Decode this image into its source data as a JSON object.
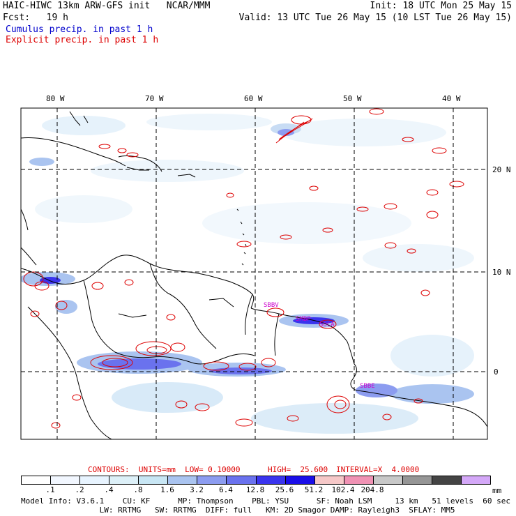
{
  "header": {
    "line1_left": "HAIC-HIWC 13km ARW-GFS init   NCAR/MMM",
    "line1_right": "Init: 18 UTC Mon 25 May 15",
    "line2_left": "Fcst:   19 h",
    "line2_right": "Valid: 13 UTC Tue 26 May 15 (10 LST Tue 26 May 15)",
    "legend_cumulus": "Cumulus precip. in past 1 h",
    "legend_explicit": "Explicit precip. in past 1 h"
  },
  "map": {
    "lon_labels": [
      "80 W",
      "70 W",
      "60 W",
      "50 W",
      "40 W"
    ],
    "lat_labels": [
      "20 N",
      "10 N",
      "0"
    ],
    "stations": [
      "SBBV",
      "SMBP",
      "SOCA",
      "SBBE"
    ]
  },
  "contours_line": {
    "contours": "CONTOURS:  UNITS=mm  LOW= 0.10000",
    "high": "HIGH=  25.600",
    "interval": "INTERVAL=X  4.0000"
  },
  "colorbar": {
    "colors": [
      "#ffffff",
      "#f2f7ff",
      "#e8f4ff",
      "#ddf0f8",
      "#c8e6f4",
      "#aac4f0",
      "#8c9cf0",
      "#6a72ee",
      "#3a34ee",
      "#1a0ee8",
      "#f6c8c8",
      "#f092b4",
      "#c8c8c8",
      "#969696",
      "#444444",
      "#d4a8f8"
    ],
    "labels": [
      ".1",
      ".2",
      ".4",
      ".8",
      "1.6",
      "3.2",
      "6.4",
      "12.8",
      "25.6",
      "51.2",
      "102.4",
      "204.8"
    ],
    "units": "mm"
  },
  "model_info": {
    "line1": "Model Info: V3.6.1    CU: KF      MP: Thompson    PBL: YSU      SF: Noah LSM     13 km   51 levels  60 sec",
    "line2": "                 LW: RRTMG   SW: RRTMG  DIFF: full   KM: 2D Smagor DAMP: Rayleigh3  SFLAY: MM5"
  },
  "colors": {
    "cumulus_text": "#0000cc",
    "explicit_text": "#dd0000",
    "contour_red": "#dd0000",
    "station_magenta": "#cc00cc"
  }
}
